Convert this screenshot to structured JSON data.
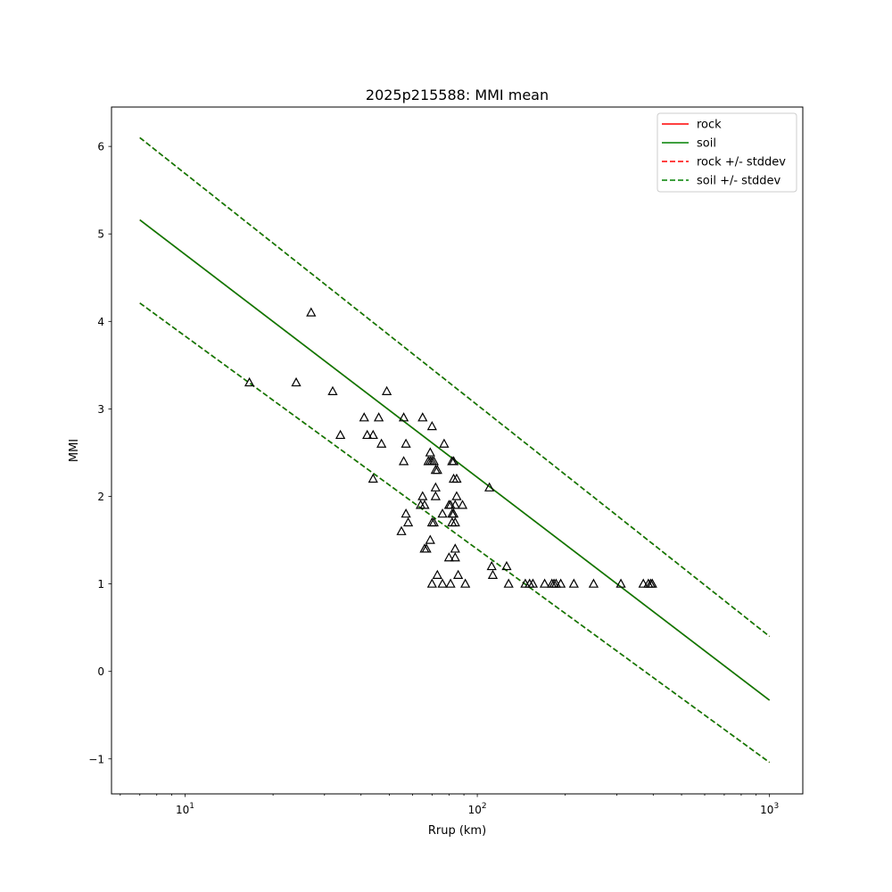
{
  "chart_data": {
    "type": "scatter",
    "title": "2025p215588: MMI mean",
    "xlabel": "Rrup (km)",
    "ylabel": "MMI",
    "xscale": "log",
    "xlim": [
      5.6,
      1300
    ],
    "ylim": [
      -1.4,
      6.45
    ],
    "grid": false,
    "legend_position": "top-right",
    "x_ticks": [
      10,
      100,
      1000
    ],
    "x_tick_labels": [
      {
        "base": "10",
        "exp": "1"
      },
      {
        "base": "10",
        "exp": "2"
      },
      {
        "base": "10",
        "exp": "3"
      }
    ],
    "y_ticks": [
      -1,
      0,
      1,
      2,
      3,
      4,
      5,
      6
    ],
    "y_tick_labels": [
      "−1",
      "0",
      "1",
      "2",
      "3",
      "4",
      "5",
      "6"
    ],
    "series": [
      {
        "name": "rock",
        "style": "solid",
        "color": "#ff0000",
        "x": [
          7,
          1000
        ],
        "y": [
          5.16,
          -0.33
        ]
      },
      {
        "name": "soil",
        "style": "solid",
        "color": "#008000",
        "x": [
          7,
          1000
        ],
        "y": [
          5.16,
          -0.33
        ]
      },
      {
        "name": "rock +/- stddev",
        "style": "dashed",
        "color": "#ff0000",
        "x": [
          7,
          1000
        ],
        "y_upper": [
          6.1,
          0.4
        ],
        "y_lower": [
          4.21,
          -1.04
        ]
      },
      {
        "name": "soil +/- stddev",
        "style": "dashed",
        "color": "#008000",
        "x": [
          7,
          1000
        ],
        "y_upper": [
          6.1,
          0.4
        ],
        "y_lower": [
          4.21,
          -1.04
        ]
      }
    ],
    "observations": {
      "marker": "triangle",
      "color": "#000000",
      "points": [
        [
          16.6,
          3.3
        ],
        [
          24,
          3.3
        ],
        [
          27,
          4.1
        ],
        [
          32,
          3.2
        ],
        [
          34,
          2.7
        ],
        [
          41,
          2.9
        ],
        [
          42,
          2.7
        ],
        [
          44,
          2.2
        ],
        [
          44,
          2.7
        ],
        [
          46,
          2.9
        ],
        [
          47,
          2.6
        ],
        [
          49,
          3.2
        ],
        [
          55,
          1.6
        ],
        [
          56,
          2.9
        ],
        [
          56,
          2.4
        ],
        [
          57,
          2.6
        ],
        [
          57,
          1.8
        ],
        [
          58,
          1.7
        ],
        [
          64,
          1.9
        ],
        [
          65,
          2.9
        ],
        [
          65,
          2.0
        ],
        [
          66,
          1.9
        ],
        [
          66,
          1.4
        ],
        [
          67,
          1.4
        ],
        [
          68,
          2.4
        ],
        [
          69,
          2.5
        ],
        [
          69,
          2.4
        ],
        [
          69,
          1.5
        ],
        [
          70,
          2.8
        ],
        [
          70,
          2.4
        ],
        [
          70,
          1.7
        ],
        [
          70,
          1.0
        ],
        [
          71,
          1.7
        ],
        [
          71,
          2.4
        ],
        [
          72,
          2.3
        ],
        [
          72,
          2.1
        ],
        [
          72,
          2.0
        ],
        [
          73,
          2.3
        ],
        [
          73,
          1.1
        ],
        [
          76,
          1.8
        ],
        [
          76,
          1.0
        ],
        [
          77,
          2.6
        ],
        [
          80,
          1.9
        ],
        [
          80,
          1.3
        ],
        [
          81,
          1.0
        ],
        [
          81,
          1.9
        ],
        [
          82,
          2.4
        ],
        [
          82,
          1.8
        ],
        [
          82,
          1.7
        ],
        [
          83,
          2.4
        ],
        [
          83,
          2.2
        ],
        [
          83,
          1.8
        ],
        [
          84,
          1.4
        ],
        [
          84,
          1.7
        ],
        [
          84,
          1.9
        ],
        [
          84,
          1.3
        ],
        [
          85,
          2.0
        ],
        [
          85,
          2.2
        ],
        [
          86,
          1.1
        ],
        [
          89,
          1.9
        ],
        [
          91,
          1.0
        ],
        [
          110,
          2.1
        ],
        [
          112,
          1.2
        ],
        [
          113,
          1.1
        ],
        [
          126,
          1.2
        ],
        [
          128,
          1.0
        ],
        [
          146,
          1.0
        ],
        [
          151,
          1.0
        ],
        [
          155,
          1.0
        ],
        [
          170,
          1.0
        ],
        [
          180,
          1.0
        ],
        [
          183,
          1.0
        ],
        [
          186,
          1.0
        ],
        [
          193,
          1.0
        ],
        [
          214,
          1.0
        ],
        [
          250,
          1.0
        ],
        [
          310,
          1.0
        ],
        [
          370,
          1.0
        ],
        [
          385,
          1.0
        ],
        [
          392,
          1.0
        ],
        [
          397,
          1.0
        ]
      ]
    }
  }
}
